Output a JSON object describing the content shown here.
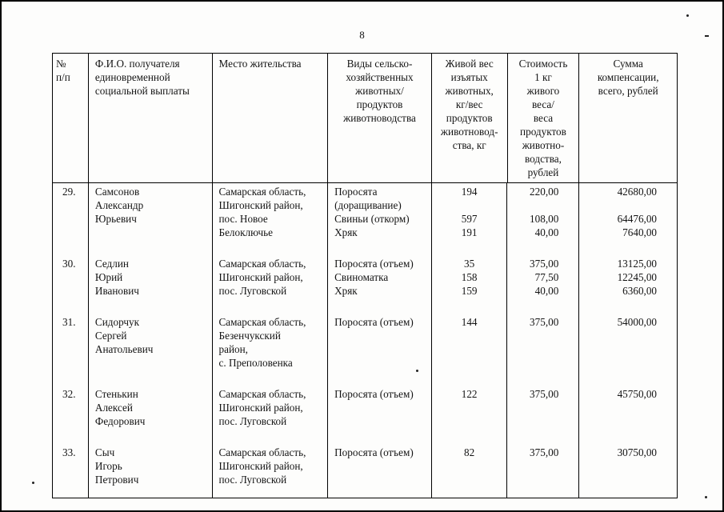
{
  "page": {
    "number": "8"
  },
  "table": {
    "headers": [
      {
        "align": "left",
        "lines": [
          "№",
          "п/п"
        ]
      },
      {
        "align": "left",
        "lines": [
          "Ф.И.О. получателя",
          "единовременной",
          "социальной выплаты"
        ]
      },
      {
        "align": "left",
        "lines": [
          "Место жительства"
        ]
      },
      {
        "align": "center",
        "lines": [
          "Виды сельско-",
          "хозяйственных",
          "животных/",
          "продуктов",
          "животноводства"
        ]
      },
      {
        "align": "center",
        "lines": [
          "Живой вес",
          "изъятых",
          "животных,",
          "кг/вес",
          "продуктов",
          "животновод-",
          "ства, кг"
        ]
      },
      {
        "align": "center",
        "lines": [
          "Стоимость",
          "1 кг",
          "живого",
          "веса/",
          "веса",
          "продуктов",
          "животно-",
          "водства,",
          "рублей"
        ]
      },
      {
        "align": "center",
        "lines": [
          "Сумма",
          "компенсации,",
          "всего, рублей"
        ]
      }
    ],
    "rows": [
      {
        "num": [
          "29."
        ],
        "name": [
          "Самсонов",
          "Александр",
          "Юрьевич"
        ],
        "address": [
          "Самарская область,",
          "Шигонский район,",
          "пос. Новое",
          "Белоключье"
        ],
        "types": [
          "Поросята",
          "(доращивание)",
          "Свиньи (откорм)",
          "Хряк"
        ],
        "weights": [
          "194",
          "",
          "597",
          "191"
        ],
        "prices": [
          "220,00",
          "",
          "108,00",
          "40,00"
        ],
        "sums": [
          "42680,00",
          "",
          "64476,00",
          "7640,00"
        ]
      },
      {
        "num": [
          "30."
        ],
        "name": [
          "Седлин",
          "Юрий",
          "Иванович"
        ],
        "address": [
          "Самарская область,",
          "Шигонский район,",
          "пос. Луговской"
        ],
        "types": [
          "Поросята (отъем)",
          "Свиноматка",
          "Хряк"
        ],
        "weights": [
          "35",
          "158",
          "159"
        ],
        "prices": [
          "375,00",
          "77,50",
          "40,00"
        ],
        "sums": [
          "13125,00",
          "12245,00",
          "6360,00"
        ]
      },
      {
        "num": [
          "31."
        ],
        "name": [
          "Сидорчук",
          "Сергей",
          "Анатольевич"
        ],
        "address": [
          "Самарская область,",
          "Безенчукский",
          "район,",
          "с. Преполовенка"
        ],
        "types": [
          "Поросята (отъем)"
        ],
        "weights": [
          "144"
        ],
        "prices": [
          "375,00"
        ],
        "sums": [
          "54000,00"
        ]
      },
      {
        "num": [
          "32."
        ],
        "name": [
          "Стенькин",
          "Алексей",
          "Федорович"
        ],
        "address": [
          "Самарская область,",
          "Шигонский район,",
          "пос. Луговской"
        ],
        "types": [
          "Поросята (отъем)"
        ],
        "weights": [
          "122"
        ],
        "prices": [
          "375,00"
        ],
        "sums": [
          "45750,00"
        ]
      },
      {
        "num": [
          "33."
        ],
        "name": [
          "Сыч",
          "Игорь",
          "Петрович"
        ],
        "address": [
          "Самарская область,",
          "Шигонский район,",
          "пос. Луговской"
        ],
        "types": [
          "Поросята (отъем)"
        ],
        "weights": [
          "82"
        ],
        "prices": [
          "375,00"
        ],
        "sums": [
          "30750,00"
        ]
      }
    ]
  }
}
